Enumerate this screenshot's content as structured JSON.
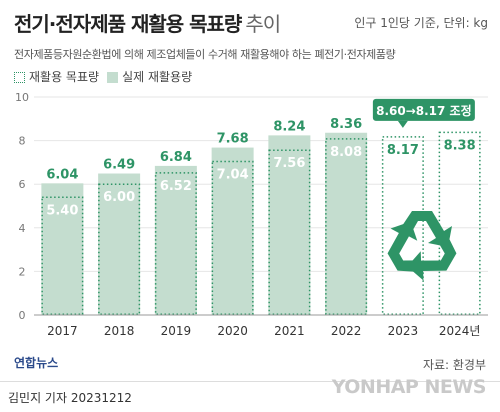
{
  "header": {
    "title": "전기·전자제품 재활용 목표량",
    "title_suffix": "추이",
    "unit": "인구 1인당 기준, 단위: kg",
    "description": "전자제품등자원순환법에 의해 제조업체들이 수거해 재활용해야 하는 폐전기·전자제품량"
  },
  "legend": {
    "target": "재활용 목표량",
    "actual": "실제 재활용량"
  },
  "chart_data": {
    "type": "bar",
    "categories": [
      "2017",
      "2018",
      "2019",
      "2020",
      "2021",
      "2022",
      "2023",
      "2024년"
    ],
    "series": [
      {
        "name": "재활용 목표량",
        "values": [
          5.4,
          6.0,
          6.52,
          7.04,
          7.56,
          8.08,
          8.17,
          8.38
        ]
      },
      {
        "name": "실제 재활용량",
        "values": [
          6.04,
          6.49,
          6.84,
          7.68,
          8.24,
          8.36,
          null,
          null
        ]
      }
    ],
    "target_labels": [
      "5.40",
      "6.00",
      "6.52",
      "7.04",
      "7.56",
      "8.08",
      "8.17",
      "8.38"
    ],
    "actual_labels": [
      "6.04",
      "6.49",
      "6.84",
      "7.68",
      "8.24",
      "8.36",
      "",
      ""
    ],
    "yticks": [
      "0",
      "2",
      "4",
      "6",
      "8",
      "10"
    ],
    "ylim": [
      0,
      10
    ],
    "annotation": "8.60→8.17 조정",
    "colors": {
      "actual": "#c4ddcf",
      "target_border": "#2e9466",
      "label": "#ffffff",
      "actual_label": "#2e9466",
      "callout": "#2e9466",
      "recycle": "#2e9466"
    }
  },
  "footer": {
    "logo": "연합뉴스",
    "source": "자료: 환경부",
    "reporter": "김민지 기자  20231212",
    "watermark": "YONHAP NEWS"
  },
  "icons": {
    "recycle": "recycle-icon",
    "logo": "yonhap-logo-icon"
  }
}
